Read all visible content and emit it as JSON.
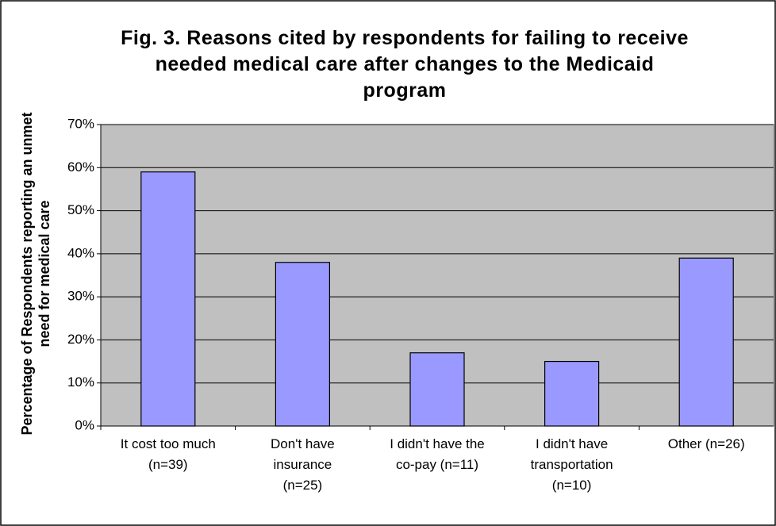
{
  "chart_data": {
    "type": "bar",
    "title": "Fig. 3. Reasons cited by respondents for failing to receive needed medical care after changes to the Medicaid program",
    "y_label": "Percentage of Respondents reporting an unmet need for medical care",
    "categories": [
      "It cost too much\n(n=39)",
      "Don't have\ninsurance\n(n=25)",
      "I didn't have the\nco-pay (n=11)",
      "I didn't have\ntransportation\n(n=10)",
      "Other (n=26)"
    ],
    "values": [
      59,
      38,
      17,
      15,
      39
    ],
    "color": "#9999ff",
    "ylim": [
      0,
      70
    ],
    "yticks": [
      {
        "value": 0,
        "label": "0%"
      },
      {
        "value": 10,
        "label": "10%"
      },
      {
        "value": 20,
        "label": "20%"
      },
      {
        "value": 30,
        "label": "30%"
      },
      {
        "value": 40,
        "label": "40%"
      },
      {
        "value": 50,
        "label": "50%"
      },
      {
        "value": 60,
        "label": "60%"
      },
      {
        "value": 70,
        "label": "70%"
      }
    ],
    "grid": true
  }
}
